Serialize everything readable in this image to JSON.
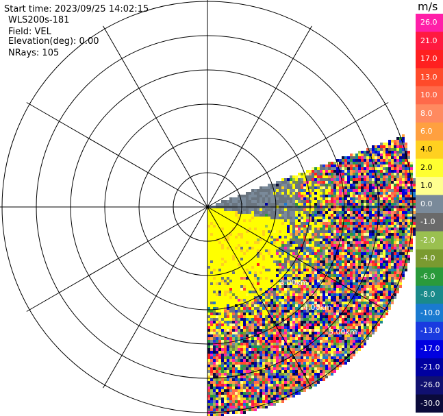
{
  "info": {
    "start_time": "Start time: 2023/09/25 14:02:15",
    "instrument": "WLS200s-181",
    "field": "Field: VEL",
    "elevation": "Elevation(deg): 0.00",
    "nrays": "NRays: 105"
  },
  "range_labels": [
    "3.00km",
    "4.00km",
    "5.00km"
  ],
  "colorbar": {
    "unit": "m/s",
    "ticks": [
      "26.0",
      "21.0",
      "17.0",
      "13.0",
      "10.0",
      "8.0",
      "6.0",
      "4.0",
      "2.0",
      "1.0",
      "0.0",
      "-1.0",
      "-2.0",
      "-4.0",
      "-6.0",
      "-8.0",
      "-10.0",
      "-13.0",
      "-17.0",
      "-21.0",
      "-26.0",
      "-30.0"
    ],
    "colors": [
      "#ff1fa8",
      "#ff1a40",
      "#ff2020",
      "#ff4a2a",
      "#ff6a4a",
      "#ff8a60",
      "#ffa040",
      "#ffd020",
      "#ffff30",
      "#ffff90",
      "#7a8a9a",
      "#6a6a6a",
      "#9ac050",
      "#7a9a30",
      "#2a9a3a",
      "#1a8a8a",
      "#1a7ad0",
      "#1a3ae0",
      "#0000e0",
      "#0000a0",
      "#101070",
      "#0a0a3a"
    ]
  },
  "colors": {
    "sector_yellow": "#ffff00",
    "clutter_grey": "#6a7580"
  }
}
